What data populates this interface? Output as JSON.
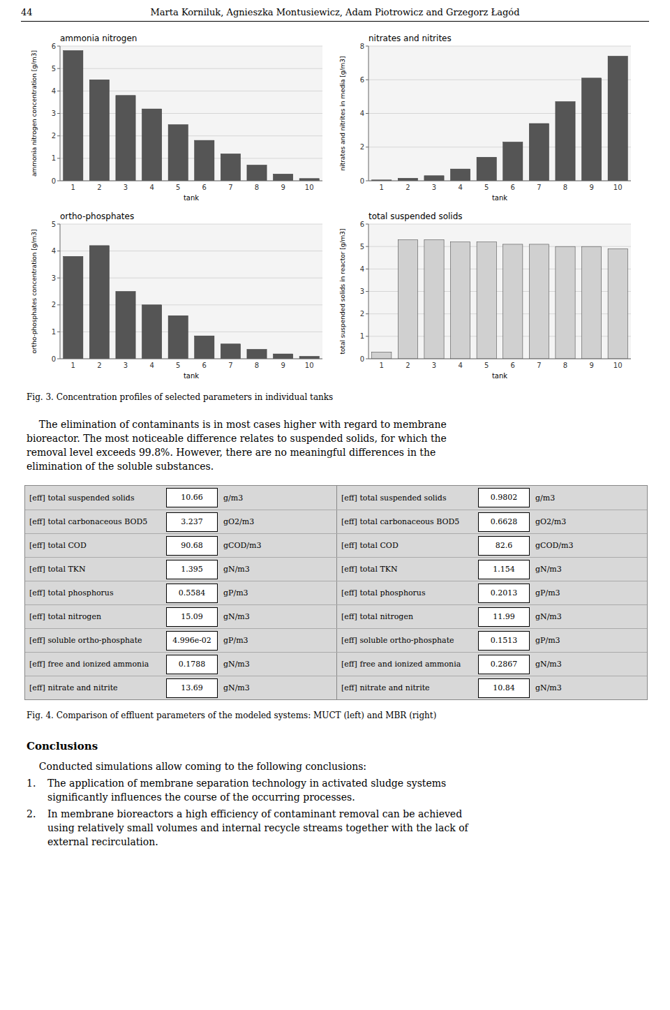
{
  "chart_data": [
    {
      "type": "bar",
      "title": "ammonia nitrogen",
      "x_label": "tank",
      "y_label": "ammonia nitrogen concentration [g/m3]",
      "categories": [
        "1",
        "2",
        "3",
        "4",
        "5",
        "6",
        "7",
        "8",
        "9",
        "10"
      ],
      "values": [
        5.8,
        4.5,
        3.8,
        3.2,
        2.5,
        1.8,
        1.2,
        0.7,
        0.3,
        0.1
      ],
      "color": "#555555",
      "ylim": [
        0,
        6
      ],
      "yticks": [
        0,
        1,
        2,
        3,
        4,
        5,
        6
      ],
      "grid": true
    },
    {
      "type": "bar",
      "title": "nitrates and nitrites",
      "x_label": "tank",
      "y_label": "nitrates and nitrites in media [g/m3]",
      "categories": [
        "1",
        "2",
        "3",
        "4",
        "5",
        "6",
        "7",
        "8",
        "9",
        "10"
      ],
      "values": [
        0.05,
        0.15,
        0.3,
        0.7,
        1.4,
        2.3,
        3.4,
        4.7,
        6.1,
        7.4
      ],
      "color": "#555555",
      "ylim": [
        0,
        8
      ],
      "yticks": [
        0,
        2,
        4,
        6,
        8
      ],
      "grid": true
    },
    {
      "type": "bar",
      "title": "ortho-phosphates",
      "x_label": "tank",
      "y_label": "ortho-phosphates concentration [g/m3]",
      "categories": [
        "1",
        "2",
        "3",
        "4",
        "5",
        "6",
        "7",
        "8",
        "9",
        "10"
      ],
      "values": [
        3.8,
        4.2,
        2.5,
        2.0,
        1.6,
        0.85,
        0.55,
        0.35,
        0.18,
        0.09
      ],
      "color": "#555555",
      "ylim": [
        0,
        5
      ],
      "yticks": [
        0,
        1,
        2,
        3,
        4,
        5
      ],
      "grid": true
    },
    {
      "type": "bar",
      "title": "total suspended solids",
      "x_label": "tank",
      "y_label": "total suspended solids in reactor [g/m3]",
      "categories": [
        "1",
        "2",
        "3",
        "4",
        "5",
        "6",
        "7",
        "8",
        "9",
        "10"
      ],
      "values": [
        0.3,
        5.3,
        5.3,
        5.2,
        5.2,
        5.1,
        5.1,
        5.0,
        5.0,
        4.9
      ],
      "color": "#d0d0d0",
      "ylim": [
        0,
        6
      ],
      "yticks": [
        0,
        1,
        2,
        3,
        4,
        5,
        6
      ],
      "grid": true
    }
  ],
  "page": {
    "page_number": "44",
    "header": "Marta Korniluk, Agnieszka Montusiewicz, Adam Piotrowicz and Grzegorz Łagód",
    "fig3_caption": "Fig. 3. Concentration profiles of selected parameters in individual tanks",
    "paragraph": [
      "    The elimination of contaminants is in most cases higher with regard to membrane",
      "bioreactor. The most noticeable difference relates to suspended solids, for which the",
      "removal level exceeds 99.8%. However, there are no meaningful differences in the",
      "elimination of the soluble substances."
    ],
    "table_left_labels": [
      "[eff] total suspended solids",
      "[eff] total carbonaceous BOD5",
      "[eff] total COD",
      "[eff] total TKN",
      "[eff] total phosphorus",
      "[eff] total nitrogen",
      "[eff] soluble ortho-phosphate",
      "[eff] free and ionized ammonia",
      "[eff] nitrate and nitrite"
    ],
    "table_left_values": [
      "10.66",
      "3.237",
      "90.68",
      "1.395",
      "0.5584",
      "15.09",
      "4.996e-02",
      "0.1788",
      "13.69"
    ],
    "table_left_units": [
      "g/m3",
      "gO2/m3",
      "gCOD/m3",
      "gN/m3",
      "gP/m3",
      "gN/m3",
      "gP/m3",
      "gN/m3",
      "gN/m3"
    ],
    "table_right_labels": [
      "[eff] total suspended solids",
      "[eff] total carbonaceous BOD5",
      "[eff] total COD",
      "[eff] total TKN",
      "[eff] total phosphorus",
      "[eff] total nitrogen",
      "[eff] soluble ortho-phosphate",
      "[eff] free and ionized ammonia",
      "[eff] nitrate and nitrite"
    ],
    "table_right_values": [
      "0.9802",
      "0.6628",
      "82.6",
      "1.154",
      "0.2013",
      "11.99",
      "0.1513",
      "0.2867",
      "10.84"
    ],
    "table_right_units": [
      "g/m3",
      "gO2/m3",
      "gCOD/m3",
      "gN/m3",
      "gP/m3",
      "gN/m3",
      "gP/m3",
      "gN/m3",
      "gN/m3"
    ],
    "fig4_caption": "Fig. 4. Comparison of effluent parameters of the modeled systems: MUCT (left) and MBR (right)",
    "conclusions_title": "Conclusions",
    "conclusions_intro": "    Conducted simulations allow coming to the following conclusions:",
    "conclusions": [
      {
        "label": "1.",
        "lines": [
          "The application of membrane separation technology in activated sludge systems",
          "significantly influences the course of the occurring processes."
        ]
      },
      {
        "label": "2.",
        "lines": [
          "In membrane bioreactors a high efficiency of contaminant removal can be achieved",
          "using relatively small volumes and internal recycle streams together with the lack of",
          "external recirculation."
        ]
      }
    ]
  }
}
